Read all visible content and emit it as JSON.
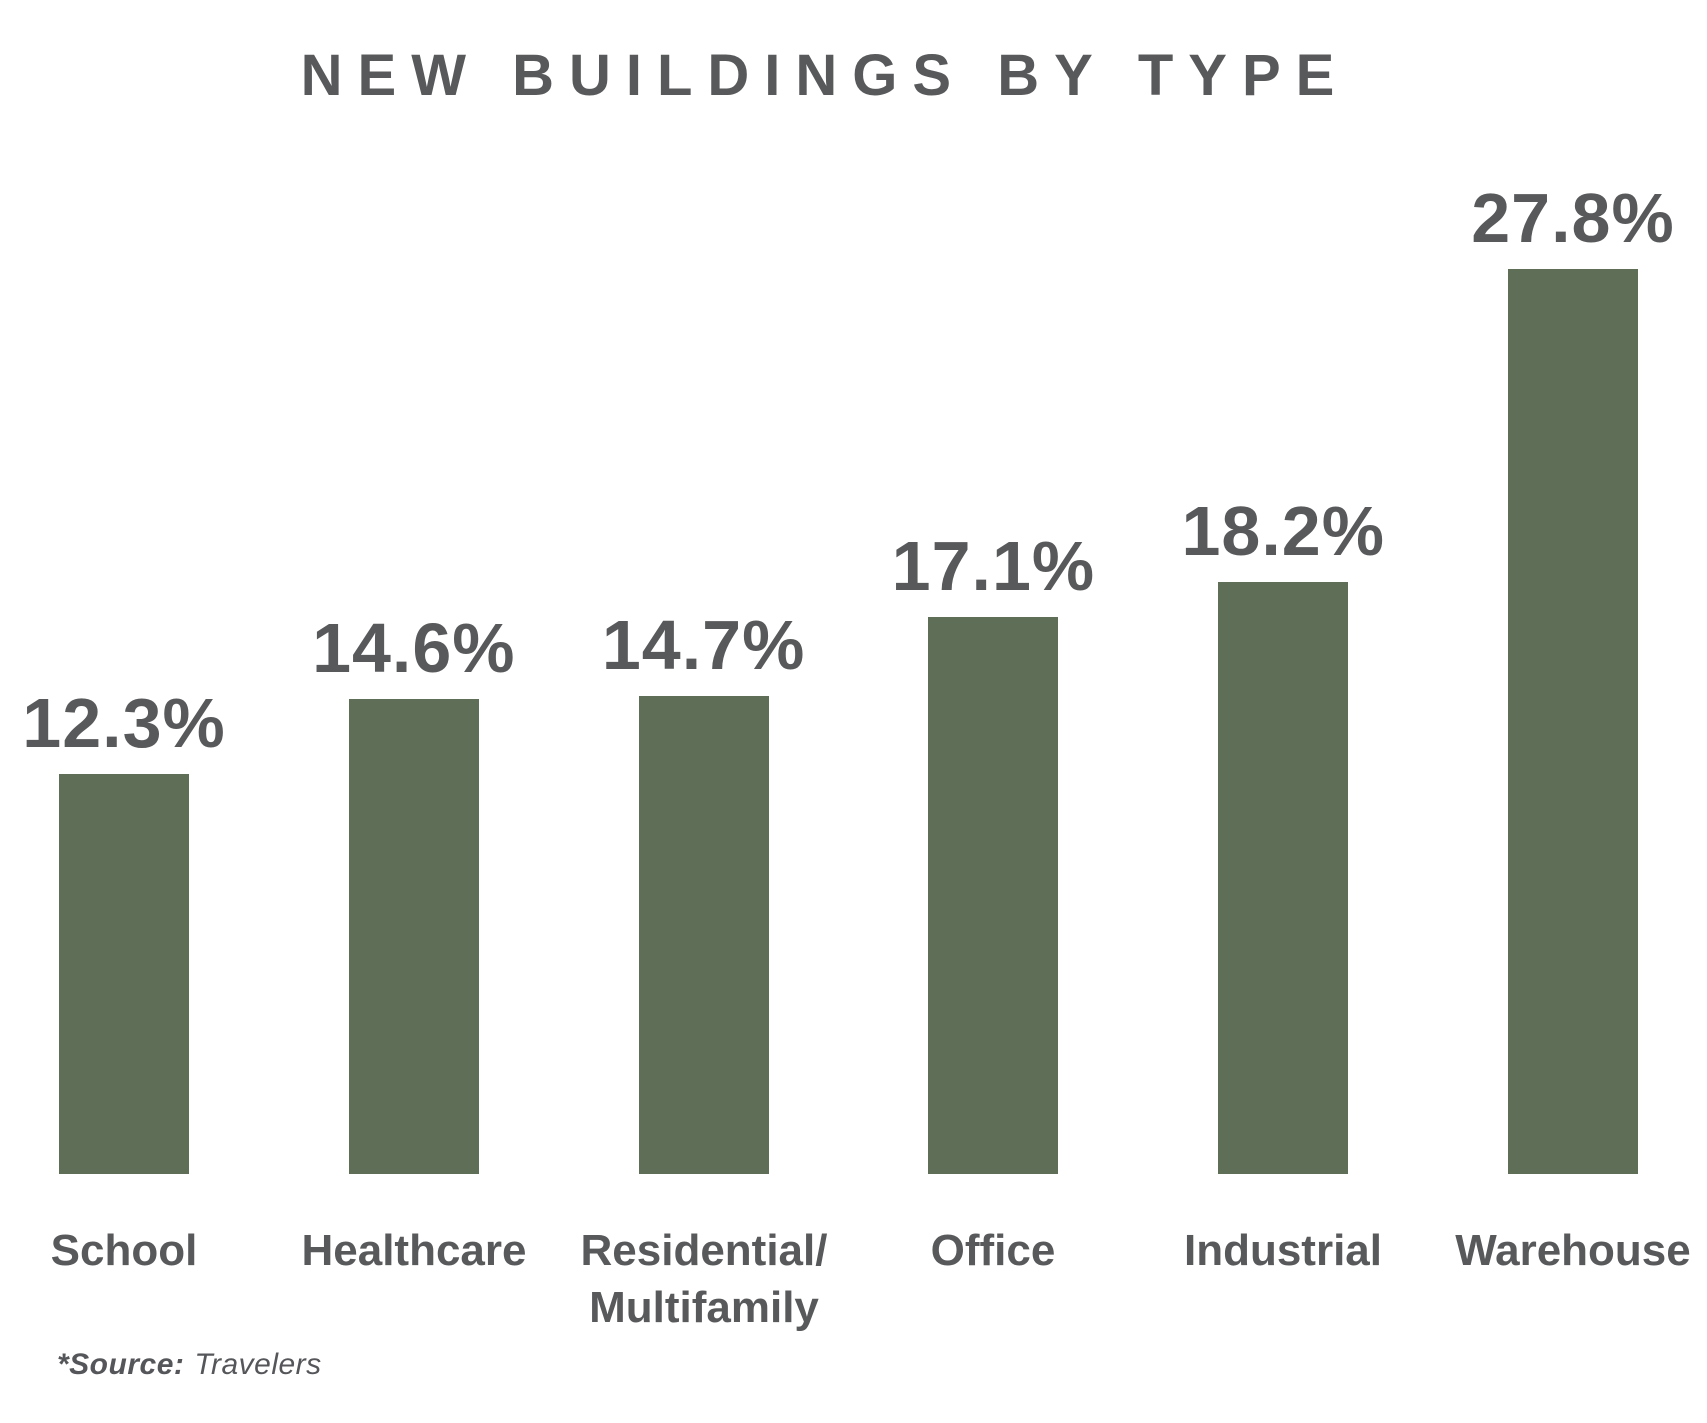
{
  "title": "NEW BUILDINGS BY TYPE",
  "source": {
    "label": "*Source:",
    "value": "Travelers"
  },
  "colors": {
    "bar": "#5e6e57",
    "text": "#58595b",
    "background": "#ffffff"
  },
  "chart_data": {
    "type": "bar",
    "title": "NEW BUILDINGS BY TYPE",
    "categories": [
      "School",
      "Healthcare",
      "Residential/\nMultifamily",
      "Office",
      "Industrial",
      "Warehouse"
    ],
    "category_slugs": [
      "school",
      "healthcare",
      "residential-multifamily",
      "office",
      "industrial",
      "warehouse"
    ],
    "values": [
      12.3,
      14.6,
      14.7,
      17.1,
      18.2,
      27.8
    ],
    "value_labels": [
      "12.3%",
      "14.6%",
      "14.7%",
      "17.1%",
      "18.2%",
      "27.8%"
    ],
    "unit": "%",
    "xlabel": "",
    "ylabel": "",
    "ylim": [
      0,
      27.8
    ],
    "grid": false,
    "legend": false,
    "axis_lines": false,
    "source_note": "*Source: Travelers"
  }
}
